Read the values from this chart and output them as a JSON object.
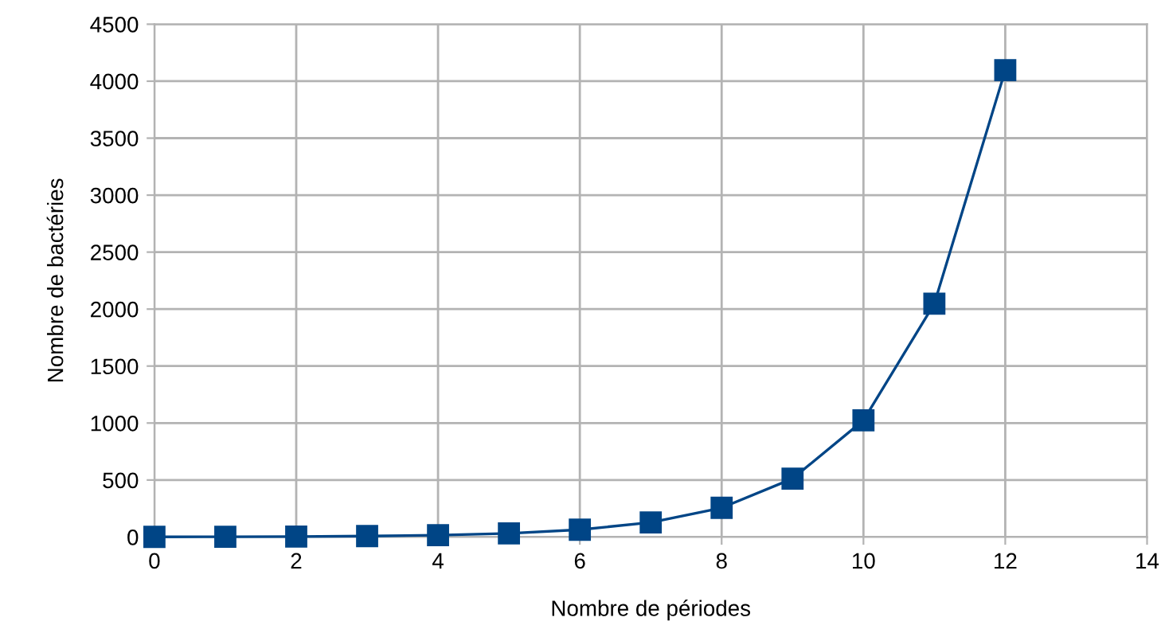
{
  "chart_data": {
    "type": "line",
    "xlabel": "Nombre de périodes",
    "ylabel": "Nombre de bactéries",
    "x": [
      0,
      1,
      2,
      3,
      4,
      5,
      6,
      7,
      8,
      9,
      10,
      11,
      12
    ],
    "series": [
      {
        "color": "#004586",
        "values": [
          1,
          2,
          4,
          8,
          16,
          32,
          64,
          128,
          256,
          512,
          1024,
          2048,
          4096
        ]
      }
    ],
    "xlim": [
      0,
      14
    ],
    "xticks": [
      0,
      2,
      4,
      6,
      8,
      10,
      12,
      14
    ],
    "ylim": [
      0,
      4500
    ],
    "yticks": [
      0,
      500,
      1000,
      1500,
      2000,
      2500,
      3000,
      3500,
      4000,
      4500
    ],
    "grid": true,
    "marker": "square",
    "line_style": "solid",
    "legend": false
  }
}
